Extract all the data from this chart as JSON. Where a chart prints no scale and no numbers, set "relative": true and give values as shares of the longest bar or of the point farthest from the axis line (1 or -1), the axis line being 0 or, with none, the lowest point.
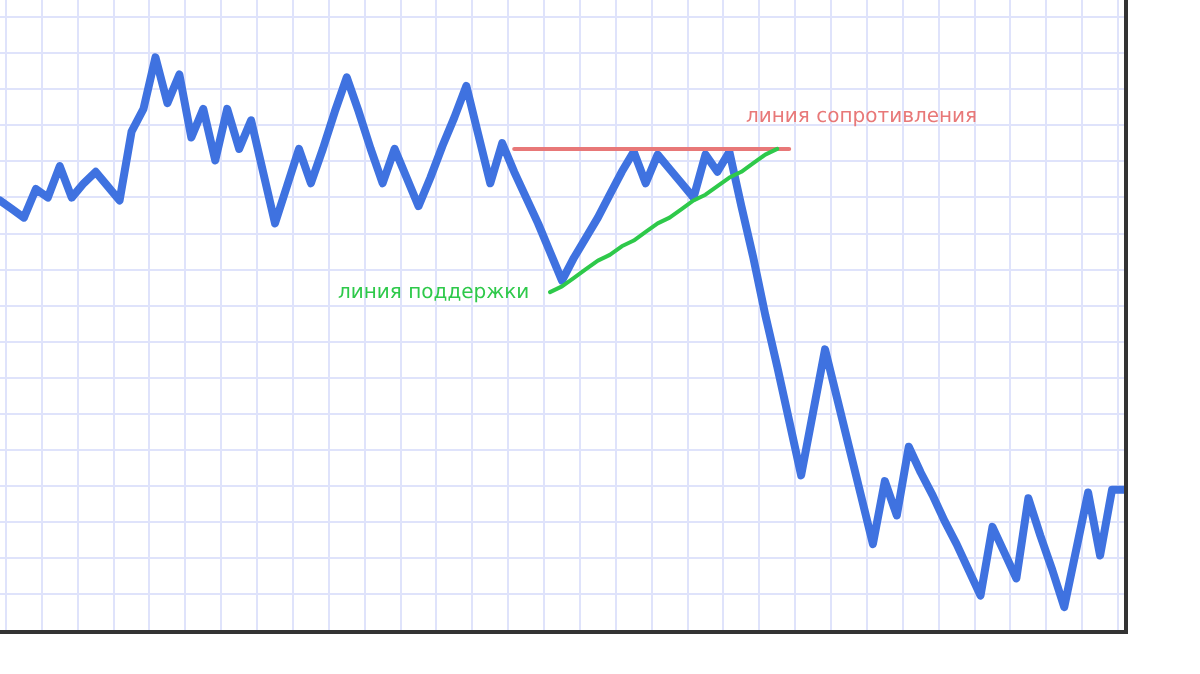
{
  "chart_data": {
    "type": "line",
    "relative": true,
    "grid": true,
    "tick_labels": false,
    "categories": [
      null,
      null,
      null,
      null,
      null,
      null,
      null,
      null,
      null,
      null,
      null,
      null,
      null,
      null,
      null,
      null,
      null,
      null,
      null,
      null,
      null,
      null,
      null,
      null,
      null,
      null,
      null,
      null,
      null,
      null,
      null,
      null,
      null,
      null,
      null,
      null,
      null,
      null,
      null,
      null,
      null,
      null,
      null,
      null,
      null,
      null,
      null,
      null,
      null,
      null,
      null,
      null,
      null,
      null,
      null,
      null,
      null,
      null,
      null,
      null,
      null,
      null,
      null,
      null,
      null,
      null,
      null,
      null,
      null,
      null,
      null,
      null,
      null,
      null,
      null,
      null,
      null,
      null,
      null,
      null,
      null,
      null,
      null,
      null,
      null,
      null,
      null,
      null,
      null,
      null,
      null,
      null,
      null,
      null,
      null
    ],
    "series": [
      {
        "color": "#3f72e0",
        "values": [
          0.75,
          0.735,
          0.72,
          0.77,
          0.755,
          0.81,
          0.755,
          0.78,
          0.8,
          0.775,
          0.75,
          0.87,
          0.91,
          1,
          0.92,
          0.97,
          0.86,
          0.91,
          0.82,
          0.91,
          0.84,
          0.89,
          0.8,
          0.71,
          0.775,
          0.84,
          0.78,
          0.84,
          0.905,
          0.965,
          0.905,
          0.84,
          0.78,
          0.84,
          0.79,
          0.74,
          0.79,
          0.845,
          0.895,
          0.95,
          0.865,
          0.78,
          0.85,
          0.8,
          0.755,
          0.71,
          0.66,
          0.61,
          0.65,
          0.685,
          0.72,
          0.76,
          0.8,
          0.835,
          0.78,
          0.83,
          0.805,
          0.78,
          0.755,
          0.83,
          0.8,
          0.835,
          0.74,
          0.65,
          0.55,
          0.46,
          0.365,
          0.27,
          0.38,
          0.49,
          0.405,
          0.32,
          0.235,
          0.15,
          0.26,
          0.2,
          0.32,
          0.275,
          0.235,
          0.19,
          0.15,
          0.105,
          0.06,
          0.18,
          0.135,
          0.09,
          0.23,
          0.165,
          0.105,
          0.04,
          0.14,
          0.24,
          0.13,
          0.245,
          0.245
        ]
      },
      {
        "color": "#e87878",
        "values": [
          null,
          null,
          null,
          null,
          null,
          null,
          null,
          null,
          null,
          null,
          null,
          null,
          null,
          null,
          null,
          null,
          null,
          null,
          null,
          null,
          null,
          null,
          null,
          null,
          null,
          null,
          null,
          null,
          null,
          null,
          null,
          null,
          null,
          null,
          null,
          null,
          null,
          null,
          null,
          null,
          null,
          null,
          null,
          0.84,
          0.84,
          0.84,
          0.84,
          0.84,
          0.84,
          0.84,
          0.84,
          0.84,
          0.84,
          0.84,
          0.84,
          0.84,
          0.84,
          0.84,
          0.84,
          0.84,
          0.84,
          0.84,
          0.84,
          0.84,
          0.84,
          0.84,
          0.84,
          null,
          null,
          null,
          null,
          null,
          null,
          null,
          null,
          null,
          null,
          null,
          null,
          null,
          null,
          null,
          null,
          null,
          null,
          null,
          null,
          null,
          null,
          null,
          null,
          null,
          null,
          null,
          null
        ]
      },
      {
        "color": "#2ec94a",
        "values": [
          null,
          null,
          null,
          null,
          null,
          null,
          null,
          null,
          null,
          null,
          null,
          null,
          null,
          null,
          null,
          null,
          null,
          null,
          null,
          null,
          null,
          null,
          null,
          null,
          null,
          null,
          null,
          null,
          null,
          null,
          null,
          null,
          null,
          null,
          null,
          null,
          null,
          null,
          null,
          null,
          null,
          null,
          null,
          null,
          null,
          null,
          0.59,
          0.6,
          0.615,
          0.63,
          0.645,
          0.655,
          0.67,
          0.68,
          0.695,
          0.71,
          0.72,
          0.735,
          0.75,
          0.76,
          0.775,
          0.79,
          0.8,
          0.815,
          0.83,
          0.84,
          null,
          null,
          null,
          null,
          null,
          null,
          null,
          null,
          null,
          null,
          null,
          null,
          null,
          null,
          null,
          null,
          null,
          null,
          null,
          null,
          null,
          null,
          null,
          null,
          null,
          null,
          null,
          null,
          null
        ]
      }
    ],
    "annotations": [
      "линия сопротивления",
      "линия поддержки"
    ]
  }
}
